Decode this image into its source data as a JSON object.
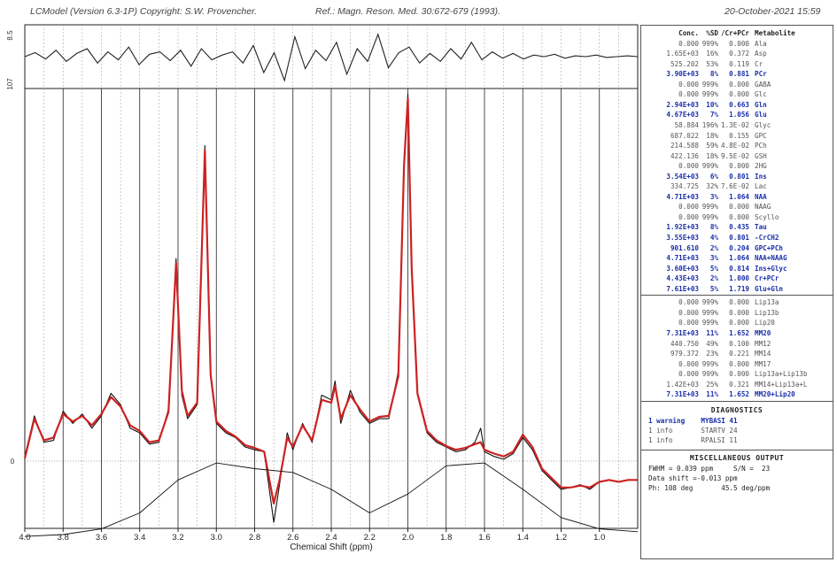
{
  "header": {
    "program": "LCModel (Version 6.3-1P) Copyright: S.W. Provencher.",
    "reference": "Ref.: Magn. Reson. Med. 30:672-679 (1993).",
    "date": "20-October-2021  15:59"
  },
  "residual_axis": {
    "top_label": "8.5",
    "bottom_label": "107"
  },
  "chart_data": {
    "type": "line",
    "xlabel": "Chemical Shift (ppm)",
    "xlim": [
      4.0,
      0.8
    ],
    "x_ticks": [
      "4.0",
      "3.8",
      "3.6",
      "3.4",
      "3.2",
      "3.0",
      "2.8",
      "2.6",
      "2.4",
      "2.2",
      "2.0",
      "1.8",
      "1.6",
      "1.4",
      "1.2",
      "1.0"
    ],
    "y_ticks": [
      "0"
    ],
    "series": [
      {
        "color": "#111111",
        "x": [
          4.0,
          3.95,
          3.9,
          3.85,
          3.8,
          3.75,
          3.7,
          3.65,
          3.6,
          3.55,
          3.5,
          3.45,
          3.4,
          3.35,
          3.3,
          3.25,
          3.21,
          3.18,
          3.15,
          3.1,
          3.06,
          3.03,
          3.0,
          2.95,
          2.9,
          2.85,
          2.8,
          2.75,
          2.7,
          2.67,
          2.63,
          2.6,
          2.55,
          2.5,
          2.45,
          2.4,
          2.38,
          2.35,
          2.3,
          2.25,
          2.2,
          2.15,
          2.1,
          2.05,
          2.02,
          2.0,
          1.98,
          1.95,
          1.9,
          1.85,
          1.8,
          1.75,
          1.7,
          1.65,
          1.62,
          1.6,
          1.55,
          1.5,
          1.45,
          1.4,
          1.35,
          1.3,
          1.25,
          1.2,
          1.15,
          1.1,
          1.05,
          1.0,
          0.95,
          0.9,
          0.85,
          0.8
        ],
        "values": [
          5,
          48,
          20,
          22,
          53,
          40,
          50,
          35,
          48,
          72,
          60,
          35,
          30,
          18,
          20,
          55,
          215,
          70,
          45,
          60,
          335,
          90,
          40,
          30,
          25,
          15,
          12,
          10,
          -65,
          -25,
          30,
          12,
          40,
          20,
          70,
          65,
          85,
          40,
          75,
          52,
          40,
          45,
          45,
          95,
          320,
          390,
          200,
          70,
          30,
          20,
          15,
          10,
          12,
          20,
          35,
          10,
          5,
          2,
          8,
          25,
          12,
          -10,
          -20,
          -30,
          -28,
          -25,
          -30,
          -22,
          -20,
          -22,
          -20,
          -20
        ]
      },
      {
        "color": "#cc2222",
        "x": [
          4.0,
          3.95,
          3.9,
          3.85,
          3.8,
          3.75,
          3.7,
          3.65,
          3.6,
          3.55,
          3.5,
          3.45,
          3.4,
          3.35,
          3.3,
          3.25,
          3.21,
          3.18,
          3.15,
          3.1,
          3.06,
          3.03,
          3.0,
          2.95,
          2.9,
          2.85,
          2.8,
          2.75,
          2.7,
          2.67,
          2.63,
          2.6,
          2.55,
          2.5,
          2.45,
          2.4,
          2.38,
          2.35,
          2.3,
          2.25,
          2.2,
          2.15,
          2.1,
          2.05,
          2.02,
          2.0,
          1.98,
          1.95,
          1.9,
          1.85,
          1.8,
          1.75,
          1.7,
          1.65,
          1.62,
          1.6,
          1.55,
          1.5,
          1.45,
          1.4,
          1.35,
          1.3,
          1.25,
          1.2,
          1.15,
          1.1,
          1.05,
          1.0,
          0.95,
          0.9,
          0.85,
          0.8
        ],
        "values": [
          3,
          45,
          22,
          25,
          50,
          42,
          48,
          38,
          50,
          68,
          58,
          38,
          32,
          20,
          22,
          52,
          210,
          75,
          48,
          62,
          330,
          92,
          42,
          32,
          26,
          17,
          14,
          10,
          -45,
          -20,
          25,
          15,
          38,
          22,
          65,
          62,
          80,
          45,
          70,
          55,
          42,
          47,
          48,
          90,
          315,
          385,
          205,
          72,
          32,
          22,
          16,
          12,
          14,
          18,
          20,
          12,
          8,
          5,
          10,
          28,
          15,
          -8,
          -18,
          -28,
          -28,
          -26,
          -28,
          -22,
          -20,
          -22,
          -20,
          -20
        ]
      },
      {
        "color": "#111111",
        "x": [
          4.0,
          3.8,
          3.6,
          3.4,
          3.2,
          3.0,
          2.8,
          2.6,
          2.4,
          2.2,
          2.0,
          1.8,
          1.6,
          1.4,
          1.2,
          1.0,
          0.8
        ],
        "values": [
          -80,
          -78,
          -72,
          -55,
          -20,
          -2,
          -8,
          -12,
          -30,
          -55,
          -35,
          -5,
          -2,
          -30,
          -60,
          -72,
          -75
        ]
      }
    ],
    "residual": [
      0,
      5,
      -3,
      8,
      -6,
      4,
      10,
      -8,
      6,
      -4,
      12,
      -10,
      3,
      6,
      -5,
      8,
      -12,
      10,
      -4,
      2,
      6,
      -8,
      14,
      -20,
      5,
      -30,
      25,
      -15,
      8,
      -5,
      18,
      -22,
      10,
      -6,
      28,
      -14,
      5,
      12,
      -8,
      4,
      -6,
      10,
      -3,
      18,
      -4,
      6,
      -2,
      4,
      -3,
      2,
      0,
      3,
      -2,
      1,
      0,
      2,
      -1,
      0,
      1,
      0
    ],
    "baseline_is_zero": true,
    "grid": "vertical"
  },
  "table": {
    "columns": [
      "Conc.",
      "%SD",
      "/Cr+PCr",
      "Metabolite"
    ],
    "rows": [
      {
        "conc": "0.000",
        "sd": "999%",
        "cr": "0.000",
        "met": "Ala",
        "bold": false
      },
      {
        "conc": "1.65E+03",
        "sd": "16%",
        "cr": "0.372",
        "met": "Asp",
        "bold": false
      },
      {
        "conc": "525.202",
        "sd": "53%",
        "cr": "0.119",
        "met": "Cr",
        "bold": false
      },
      {
        "conc": "3.90E+03",
        "sd": "8%",
        "cr": "0.881",
        "met": "PCr",
        "bold": true
      },
      {
        "conc": "0.000",
        "sd": "999%",
        "cr": "0.000",
        "met": "GABA",
        "bold": false
      },
      {
        "conc": "0.000",
        "sd": "999%",
        "cr": "0.000",
        "met": "Glc",
        "bold": false
      },
      {
        "conc": "2.94E+03",
        "sd": "10%",
        "cr": "0.663",
        "met": "Gln",
        "bold": true
      },
      {
        "conc": "4.67E+03",
        "sd": "7%",
        "cr": "1.056",
        "met": "Glu",
        "bold": true
      },
      {
        "conc": "58.884",
        "sd": "196%",
        "cr": "1.3E-02",
        "met": "Glyc",
        "bold": false
      },
      {
        "conc": "687.022",
        "sd": "18%",
        "cr": "0.155",
        "met": "GPC",
        "bold": false
      },
      {
        "conc": "214.588",
        "sd": "59%",
        "cr": "4.8E-02",
        "met": "PCh",
        "bold": false
      },
      {
        "conc": "422.136",
        "sd": "18%",
        "cr": "9.5E-02",
        "met": "GSH",
        "bold": false
      },
      {
        "conc": "0.000",
        "sd": "999%",
        "cr": "0.000",
        "met": "2HG",
        "bold": false
      },
      {
        "conc": "3.54E+03",
        "sd": "6%",
        "cr": "0.801",
        "met": "Ins",
        "bold": true
      },
      {
        "conc": "334.725",
        "sd": "32%",
        "cr": "7.6E-02",
        "met": "Lac",
        "bold": false
      },
      {
        "conc": "4.71E+03",
        "sd": "3%",
        "cr": "1.064",
        "met": "NAA",
        "bold": true
      },
      {
        "conc": "0.000",
        "sd": "999%",
        "cr": "0.000",
        "met": "NAAG",
        "bold": false
      },
      {
        "conc": "0.000",
        "sd": "999%",
        "cr": "0.000",
        "met": "Scyllo",
        "bold": false
      },
      {
        "conc": "1.92E+03",
        "sd": "8%",
        "cr": "0.435",
        "met": "Tau",
        "bold": true
      },
      {
        "conc": "3.55E+03",
        "sd": "4%",
        "cr": "0.801",
        "met": "-CrCH2",
        "bold": true
      },
      {
        "conc": "901.610",
        "sd": "2%",
        "cr": "0.204",
        "met": "GPC+PCh",
        "bold": true
      },
      {
        "conc": "4.71E+03",
        "sd": "3%",
        "cr": "1.064",
        "met": "NAA+NAAG",
        "bold": true
      },
      {
        "conc": "3.60E+03",
        "sd": "5%",
        "cr": "0.814",
        "met": "Ins+Glyc",
        "bold": true
      },
      {
        "conc": "4.43E+03",
        "sd": "2%",
        "cr": "1.000",
        "met": "Cr+PCr",
        "bold": true
      },
      {
        "conc": "7.61E+03",
        "sd": "5%",
        "cr": "1.719",
        "met": "Glu+Gln",
        "bold": true
      }
    ],
    "lip_rows": [
      {
        "conc": "0.000",
        "sd": "999%",
        "cr": "0.000",
        "met": "Lip13a",
        "bold": false
      },
      {
        "conc": "0.000",
        "sd": "999%",
        "cr": "0.000",
        "met": "Lip13b",
        "bold": false
      },
      {
        "conc": "0.000",
        "sd": "999%",
        "cr": "0.000",
        "met": "Lip20",
        "bold": false
      },
      {
        "conc": "7.31E+03",
        "sd": "11%",
        "cr": "1.652",
        "met": "MM20",
        "bold": true
      },
      {
        "conc": "440.750",
        "sd": "49%",
        "cr": "0.100",
        "met": "MM12",
        "bold": false
      },
      {
        "conc": "979.372",
        "sd": "23%",
        "cr": "0.221",
        "met": "MM14",
        "bold": false
      },
      {
        "conc": "0.000",
        "sd": "999%",
        "cr": "0.000",
        "met": "MM17",
        "bold": false
      },
      {
        "conc": "0.000",
        "sd": "999%",
        "cr": "0.000",
        "met": "Lip13a+Lip13b",
        "bold": false
      },
      {
        "conc": "1.42E+03",
        "sd": "25%",
        "cr": "0.321",
        "met": "MM14+Lip13a+L",
        "bold": false
      },
      {
        "conc": "7.31E+03",
        "sd": "11%",
        "cr": "1.652",
        "met": "MM20+Lip20",
        "bold": true
      }
    ]
  },
  "diagnostics": {
    "title": "DIAGNOSTICS",
    "lines": [
      "1 warning    MYBASI 41",
      "1 info       STARTV 24",
      "1 info       RPALSI 11"
    ]
  },
  "misc": {
    "title": "MISCELLANEOUS OUTPUT",
    "lines": [
      "FWHM = 0.039 ppm     S/N =  23",
      "Data shift =-0.013 ppm",
      "Ph: 108 deg       45.5 deg/ppm"
    ]
  }
}
